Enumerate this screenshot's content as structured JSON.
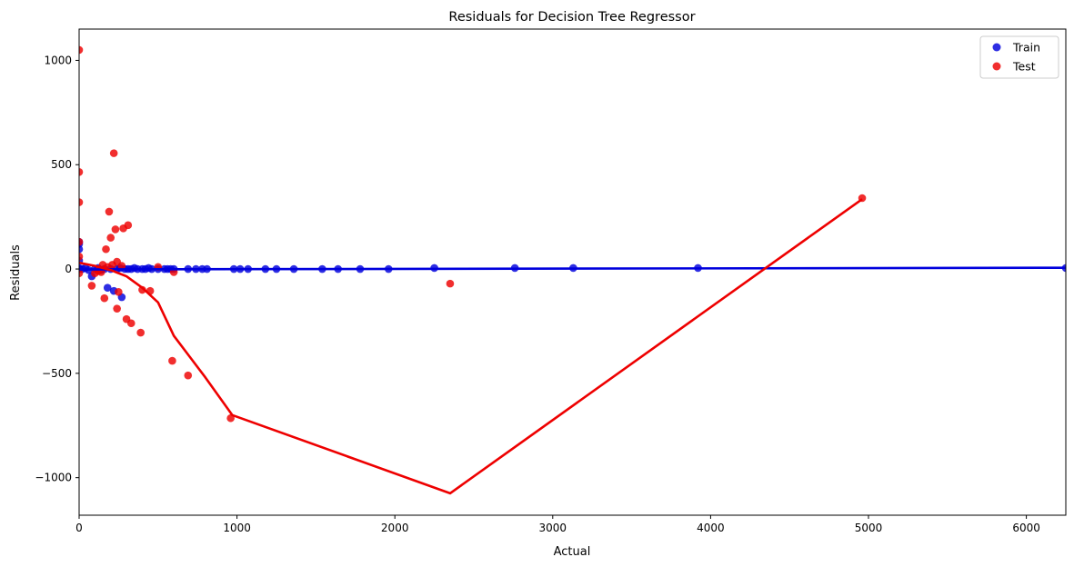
{
  "chart_data": {
    "type": "scatter",
    "title": "Residuals for Decision Tree Regressor",
    "xlabel": "Actual",
    "ylabel": "Residuals",
    "xlim": [
      0,
      6250
    ],
    "ylim": [
      -1180,
      1150
    ],
    "xticks": [
      0,
      1000,
      2000,
      3000,
      4000,
      5000,
      6000
    ],
    "yticks": [
      -1000,
      -500,
      0,
      500,
      1000
    ],
    "grid": false,
    "legend": {
      "placement": "top-right",
      "entries": [
        "Train",
        "Test"
      ]
    },
    "series": [
      {
        "name": "Train",
        "color": "#0000dd",
        "points": [
          [
            0,
            130
          ],
          [
            0,
            120
          ],
          [
            0,
            95
          ],
          [
            0,
            40
          ],
          [
            0,
            5
          ],
          [
            0,
            0
          ],
          [
            20,
            0
          ],
          [
            40,
            5
          ],
          [
            60,
            -5
          ],
          [
            80,
            -35
          ],
          [
            100,
            0
          ],
          [
            120,
            5
          ],
          [
            140,
            -5
          ],
          [
            160,
            0
          ],
          [
            180,
            -90
          ],
          [
            200,
            0
          ],
          [
            220,
            -105
          ],
          [
            240,
            0
          ],
          [
            260,
            5
          ],
          [
            270,
            -135
          ],
          [
            290,
            0
          ],
          [
            310,
            0
          ],
          [
            330,
            0
          ],
          [
            350,
            5
          ],
          [
            370,
            0
          ],
          [
            400,
            0
          ],
          [
            420,
            0
          ],
          [
            440,
            5
          ],
          [
            460,
            0
          ],
          [
            500,
            0
          ],
          [
            540,
            0
          ],
          [
            560,
            0
          ],
          [
            580,
            0
          ],
          [
            600,
            0
          ],
          [
            690,
            0
          ],
          [
            740,
            0
          ],
          [
            780,
            0
          ],
          [
            810,
            0
          ],
          [
            980,
            0
          ],
          [
            1020,
            0
          ],
          [
            1070,
            0
          ],
          [
            1180,
            0
          ],
          [
            1250,
            0
          ],
          [
            1360,
            0
          ],
          [
            1540,
            0
          ],
          [
            1640,
            0
          ],
          [
            1780,
            0
          ],
          [
            1960,
            0
          ],
          [
            2250,
            5
          ],
          [
            2760,
            5
          ],
          [
            3130,
            5
          ],
          [
            3920,
            5
          ],
          [
            6250,
            5
          ]
        ],
        "fit_line": [
          [
            0,
            -2
          ],
          [
            6250,
            6
          ]
        ]
      },
      {
        "name": "Test",
        "color": "#ee0000",
        "points": [
          [
            0,
            1050
          ],
          [
            0,
            465
          ],
          [
            0,
            320
          ],
          [
            0,
            130
          ],
          [
            0,
            60
          ],
          [
            0,
            -20
          ],
          [
            80,
            -80
          ],
          [
            100,
            -20
          ],
          [
            120,
            -10
          ],
          [
            140,
            -15
          ],
          [
            150,
            20
          ],
          [
            160,
            -140
          ],
          [
            170,
            95
          ],
          [
            180,
            10
          ],
          [
            190,
            275
          ],
          [
            200,
            150
          ],
          [
            210,
            20
          ],
          [
            220,
            555
          ],
          [
            230,
            190
          ],
          [
            240,
            -190
          ],
          [
            250,
            -110
          ],
          [
            240,
            35
          ],
          [
            270,
            15
          ],
          [
            280,
            195
          ],
          [
            300,
            -240
          ],
          [
            310,
            210
          ],
          [
            330,
            -260
          ],
          [
            390,
            -305
          ],
          [
            400,
            -100
          ],
          [
            450,
            -105
          ],
          [
            500,
            10
          ],
          [
            590,
            -440
          ],
          [
            600,
            -15
          ],
          [
            690,
            -510
          ],
          [
            960,
            -715
          ],
          [
            2350,
            -70
          ],
          [
            4960,
            340
          ]
        ],
        "fit_line": [
          [
            0,
            30
          ],
          [
            100,
            15
          ],
          [
            200,
            -5
          ],
          [
            300,
            -35
          ],
          [
            400,
            -90
          ],
          [
            500,
            -160
          ],
          [
            600,
            -320
          ],
          [
            700,
            -420
          ],
          [
            800,
            -520
          ],
          [
            970,
            -700
          ],
          [
            2350,
            -1075
          ],
          [
            4960,
            335
          ]
        ]
      }
    ]
  }
}
